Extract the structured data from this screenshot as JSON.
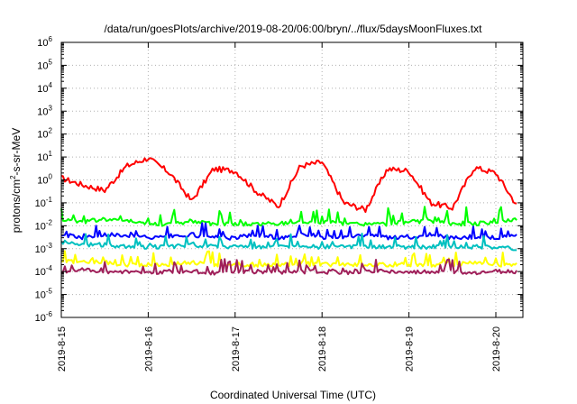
{
  "chart_data": {
    "type": "line",
    "title": "/data/run/goesPlots/archive/2019-08-20/06:00/bryn/../flux/5daysMoonFluxes.txt",
    "xlabel": "Coordinated Universal Time (UTC)",
    "ylabel": "protons/cm2-s-sr-MeV",
    "ylabel_parts": {
      "before": "protons/cm",
      "sup": "2",
      "after": "-s-sr-MeV"
    },
    "yscale": "log",
    "ylim_exp": [
      -6,
      6
    ],
    "ytick_exponents": [
      "-6",
      "-5",
      "-4",
      "-3",
      "-2",
      "-1",
      "0",
      "1",
      "2",
      "3",
      "4",
      "5",
      "6"
    ],
    "ytick_base": "10",
    "xlim": [
      "2019-08-15 00:00",
      "2019-08-20 06:00"
    ],
    "xtick_labels": [
      "2019-8-15",
      "2019-8-16",
      "2019-8-17",
      "2019-8-18",
      "2019-8-19",
      "2019-8-20"
    ],
    "grid": true,
    "x_days": [
      0,
      0.25,
      0.5,
      0.75,
      1.0,
      1.25,
      1.5,
      1.75,
      2.0,
      2.25,
      2.5,
      2.75,
      3.0,
      3.25,
      3.5,
      3.75,
      4.0,
      4.25,
      4.5,
      4.75,
      5.0,
      5.25
    ],
    "series": [
      {
        "color": "#ff0000",
        "values": [
          1.2,
          0.6,
          0.35,
          4,
          9,
          2,
          0.12,
          3,
          2.5,
          0.3,
          0.07,
          4,
          6,
          0.1,
          0.05,
          3,
          2.5,
          0.1,
          0.06,
          3.5,
          2,
          0.07
        ]
      },
      {
        "color": "#00ff00",
        "values": [
          0.02,
          0.015,
          0.02,
          0.015,
          0.012,
          0.012,
          0.015,
          0.012,
          0.012,
          0.012,
          0.012,
          0.015,
          0.015,
          0.012,
          0.012,
          0.012,
          0.015,
          0.015,
          0.012,
          0.012,
          0.015,
          0.02
        ]
      },
      {
        "color": "#0000ff",
        "values": [
          0.004,
          0.003,
          0.004,
          0.004,
          0.003,
          0.003,
          0.004,
          0.003,
          0.003,
          0.004,
          0.003,
          0.004,
          0.003,
          0.003,
          0.004,
          0.003,
          0.003,
          0.004,
          0.003,
          0.003,
          0.003,
          0.004
        ]
      },
      {
        "color": "#00c0c0",
        "values": [
          0.002,
          0.0015,
          0.0015,
          0.0012,
          0.0012,
          0.0012,
          0.0015,
          0.0012,
          0.0012,
          0.0012,
          0.0012,
          0.0012,
          0.0012,
          0.0012,
          0.0012,
          0.0012,
          0.0012,
          0.0012,
          0.0012,
          0.0012,
          0.0012,
          0.001
        ]
      },
      {
        "color": "#ffff00",
        "values": [
          0.00025,
          0.0003,
          0.00025,
          0.0002,
          0.0002,
          0.0002,
          0.00025,
          0.0002,
          0.0002,
          0.0002,
          0.0002,
          0.0002,
          0.0002,
          0.0002,
          0.0002,
          0.0002,
          0.0002,
          0.0002,
          0.0002,
          0.00025,
          0.0002,
          0.0002
        ]
      },
      {
        "color": "#a0205a",
        "values": [
          0.0001,
          0.00012,
          0.0001,
          0.0001,
          9e-05,
          0.0001,
          0.0001,
          9e-05,
          0.0001,
          0.0001,
          9e-05,
          0.0001,
          0.0001,
          9e-05,
          0.0001,
          0.0001,
          9e-05,
          0.0001,
          0.0001,
          9e-05,
          0.0001,
          0.0001
        ]
      }
    ]
  }
}
